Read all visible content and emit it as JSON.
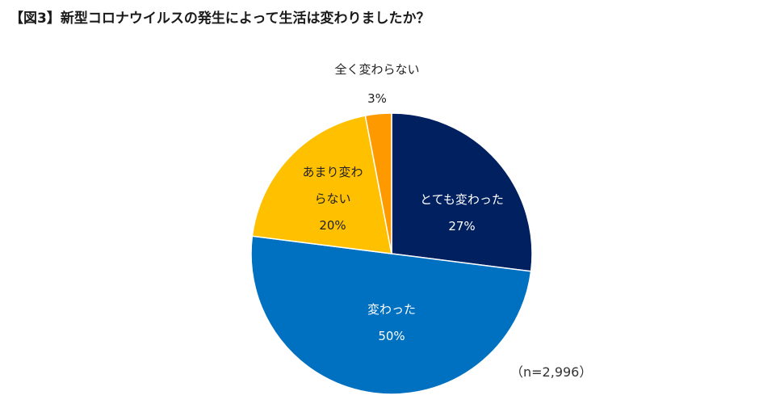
{
  "title": "【図3】新型コロナウイルスの発生によって生活は変わりましたか？",
  "sample_note": "（n=2,996）",
  "chart_data": {
    "type": "pie",
    "title": "【図3】新型コロナウイルスの発生によって生活は変わりましたか？",
    "start": "12 o'clock, clockwise",
    "slices": [
      {
        "label_lines": [
          "とても変わった"
        ],
        "value": 27,
        "value_text": "27%",
        "color": "#002060"
      },
      {
        "label_lines": [
          "変わった"
        ],
        "value": 50,
        "value_text": "50%",
        "color": "#0070C0"
      },
      {
        "label_lines": [
          "あまり変わ",
          "らない"
        ],
        "value": 20,
        "value_text": "20%",
        "color": "#FFC000"
      },
      {
        "label_lines": [
          "全く変わらない"
        ],
        "value": 3,
        "value_text": "3%",
        "color": "#FF9900"
      }
    ]
  }
}
